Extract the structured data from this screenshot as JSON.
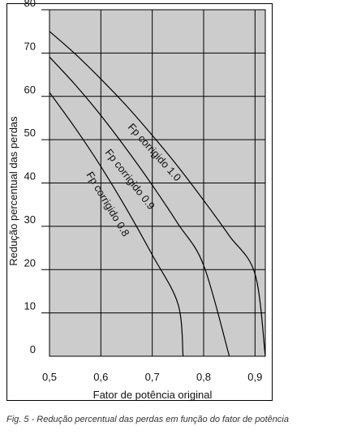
{
  "figure": {
    "caption": "Fig. 5 - Redução percentual das perdas em função do fator de potência"
  },
  "chart_data": {
    "type": "line",
    "title": "",
    "xlabel": "Fator de potência original",
    "ylabel": "Redução percentual das perdas",
    "xlim": [
      0.5,
      0.92
    ],
    "ylim": [
      0,
      80
    ],
    "x_ticks": [
      "0,5",
      "0,6",
      "0,7",
      "0,8",
      "0,9"
    ],
    "x_tick_values": [
      0.5,
      0.6,
      0.7,
      0.8,
      0.9
    ],
    "y_ticks": [
      "0",
      "10",
      "20",
      "30",
      "40",
      "50",
      "60",
      "70",
      "80"
    ],
    "y_tick_values": [
      0,
      10,
      20,
      30,
      40,
      50,
      60,
      70,
      80
    ],
    "grid": true,
    "plot_background": "#cccccc",
    "line_color": "#000000",
    "series": [
      {
        "name": "Fp corrigido 1.0",
        "x": [
          0.5,
          0.55,
          0.6,
          0.65,
          0.7,
          0.75,
          0.8,
          0.85,
          0.9,
          0.92
        ],
        "y": [
          75,
          69.8,
          64,
          57.8,
          51,
          43.8,
          36,
          27.8,
          19,
          0
        ]
      },
      {
        "name": "Fp corrigido 0.9",
        "x": [
          0.5,
          0.55,
          0.6,
          0.65,
          0.7,
          0.75,
          0.8,
          0.85
        ],
        "y": [
          69.1,
          62.7,
          55.6,
          47.8,
          39.5,
          30.6,
          21,
          0
        ]
      },
      {
        "name": "Fp corrigido 0.8",
        "x": [
          0.5,
          0.55,
          0.6,
          0.65,
          0.7,
          0.75,
          0.76
        ],
        "y": [
          60.9,
          52.7,
          43.8,
          34,
          23.4,
          12.1,
          0
        ]
      }
    ]
  }
}
